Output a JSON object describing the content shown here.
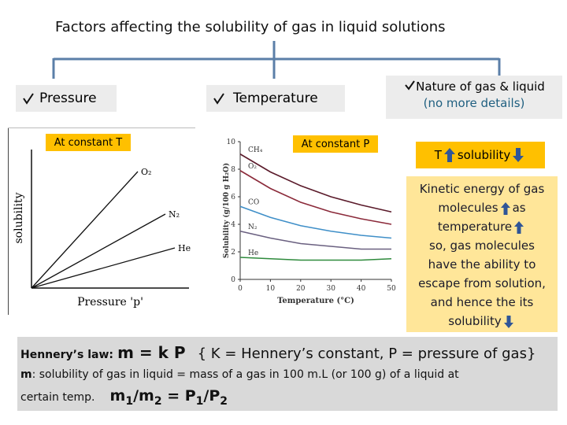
{
  "title": "Factors affecting the solubility of gas in liquid solutions",
  "branches": {
    "pressure": {
      "label": "Pressure",
      "note": "At constant T",
      "chart": {
        "ylabel": "solubility",
        "xlabel": "Pressure 'p'",
        "series": [
          "O₂",
          "N₂",
          "He"
        ]
      }
    },
    "temperature": {
      "label": "Temperature",
      "note": "At constant P",
      "chart": {
        "type": "line",
        "xlabel": "Temperature (°C)",
        "ylabel": "Solubility (g/100 g H₂O)",
        "x": [
          0,
          10,
          20,
          30,
          40,
          50
        ],
        "xlim": [
          0,
          50
        ],
        "ylim": [
          0,
          10
        ],
        "xticks": [
          0,
          10,
          20,
          30,
          40,
          50
        ],
        "yticks": [
          0,
          2,
          4,
          6,
          8,
          10
        ],
        "series": [
          {
            "name": "CH₄",
            "color": "#5a1a2a",
            "values": [
              9.1,
              7.8,
              6.8,
              6.0,
              5.4,
              4.9
            ]
          },
          {
            "name": "O₂",
            "color": "#8b2a3a",
            "values": [
              7.9,
              6.6,
              5.6,
              4.9,
              4.4,
              4.0
            ]
          },
          {
            "name": "CO",
            "color": "#3f8fc8",
            "values": [
              5.3,
              4.5,
              3.9,
              3.5,
              3.2,
              3.0
            ]
          },
          {
            "name": "N₂",
            "color": "#6a6080",
            "values": [
              3.5,
              3.0,
              2.6,
              2.4,
              2.2,
              2.2
            ]
          },
          {
            "name": "He",
            "color": "#2e8a3c",
            "values": [
              1.6,
              1.5,
              1.4,
              1.4,
              1.4,
              1.5
            ]
          }
        ]
      }
    },
    "nature": {
      "label": "Nature of gas & liquid",
      "note": "(no more details)"
    }
  },
  "summary": {
    "temperature": "T",
    "solubility": "solubility"
  },
  "explanation": [
    [
      "Kinetic energy of gas"
    ],
    [
      "molecules",
      "as"
    ],
    [
      "temperature"
    ],
    [
      "so, gas molecules"
    ],
    [
      "have the ability to"
    ],
    [
      "escape from solution,"
    ],
    [
      "and hence the its"
    ],
    [
      "solubility"
    ]
  ],
  "law": {
    "name": "Hennery’s law:",
    "formula": "m = k P",
    "definition": "{ K = Hennery’s constant, P = pressure of gas}",
    "symbol": "m",
    "description": ": solubility of gas in liquid = mass of a gas in 100 m.L (or 100 g) of a liquid at",
    "description_end": "certain temp.",
    "ratio": [
      "m",
      "1",
      "/m",
      "2",
      " = P",
      "1",
      "/P",
      "2"
    ]
  }
}
